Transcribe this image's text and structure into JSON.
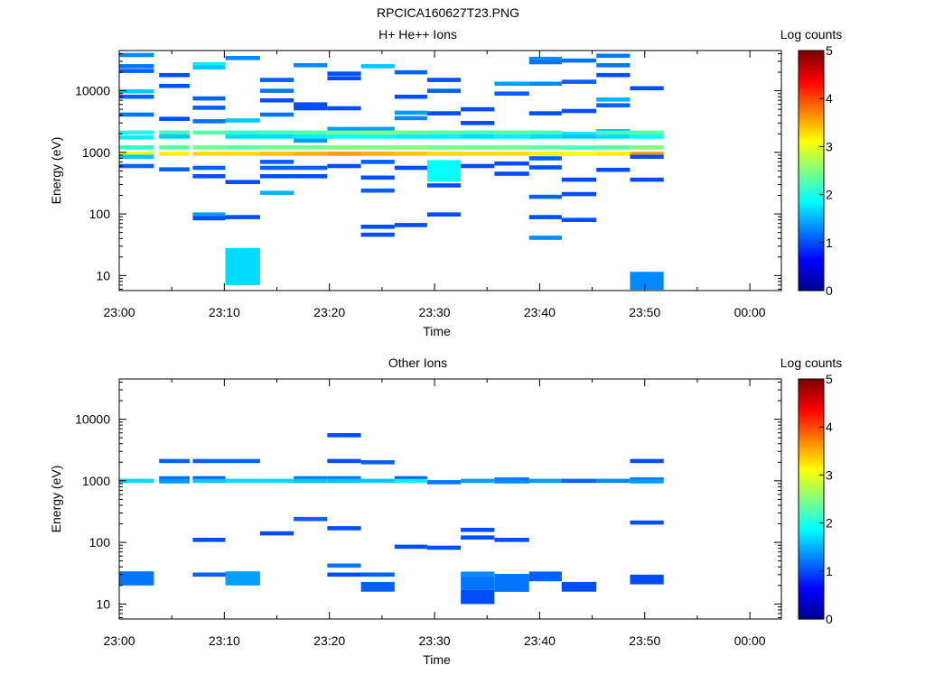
{
  "figure": {
    "title": "RPCICA160627T23.PNG"
  },
  "colors": {
    "colormap": [
      "#00008f",
      "#0000ff",
      "#0080ff",
      "#00ffff",
      "#80ff80",
      "#ffff00",
      "#ff8000",
      "#ff0000",
      "#800000"
    ],
    "axis": "#000000",
    "background": "#ffffff"
  },
  "chart_data": [
    {
      "type": "heatmap",
      "title": "H+ He++ Ions",
      "xlabel": "Time",
      "ylabel": "Energy (eV)",
      "x_ticks": [
        "23:00",
        "23:10",
        "23:20",
        "23:30",
        "23:40",
        "23:50",
        "00:00"
      ],
      "xlim_minutes": [
        0,
        63
      ],
      "y_scale": "log",
      "ylim": [
        5.7,
        45000
      ],
      "y_ticks": [
        "10",
        "100",
        "1000",
        "10000"
      ],
      "colorbar": {
        "label": "Log counts",
        "range": [
          0,
          5
        ],
        "ticks": [
          "0",
          "1",
          "2",
          "3",
          "4",
          "5"
        ]
      },
      "cells": [
        [
          0,
          3.3,
          38000,
          1.3
        ],
        [
          0,
          3.3,
          25000,
          1.2
        ],
        [
          0,
          3.3,
          21000,
          1.1
        ],
        [
          0,
          3.3,
          9800,
          1.6
        ],
        [
          0,
          3.3,
          8000,
          1.1
        ],
        [
          0,
          3.3,
          4100,
          1.2
        ],
        [
          0,
          3.3,
          2100,
          2.0
        ],
        [
          0,
          3.3,
          1750,
          1.8
        ],
        [
          0,
          3.3,
          1200,
          2.1
        ],
        [
          0,
          3.3,
          950,
          3.0
        ],
        [
          0,
          3.3,
          850,
          1.6
        ],
        [
          0,
          3.3,
          600,
          1.1
        ],
        [
          3.8,
          6.7,
          18000,
          1.0
        ],
        [
          3.8,
          6.7,
          12000,
          1.0
        ],
        [
          3.8,
          6.7,
          3500,
          1.0
        ],
        [
          3.8,
          6.7,
          2100,
          2.2
        ],
        [
          3.8,
          6.7,
          1800,
          1.6
        ],
        [
          3.8,
          6.7,
          1200,
          2.3
        ],
        [
          3.8,
          6.7,
          950,
          3.2
        ],
        [
          3.8,
          6.7,
          530,
          1.1
        ],
        [
          7,
          10.1,
          27000,
          1.8
        ],
        [
          7,
          10.1,
          24000,
          1.6
        ],
        [
          7,
          10.1,
          7500,
          1.1
        ],
        [
          7,
          10.1,
          5300,
          1.1
        ],
        [
          7,
          10.1,
          3200,
          1.2
        ],
        [
          7,
          10.1,
          2100,
          2.3
        ],
        [
          7,
          10.1,
          1200,
          2.4
        ],
        [
          7,
          10.1,
          950,
          3.3
        ],
        [
          7,
          10.1,
          560,
          1.1
        ],
        [
          7,
          10.1,
          410,
          1.0
        ],
        [
          7,
          10.1,
          98,
          1.4
        ],
        [
          7,
          10.1,
          85,
          1.0
        ],
        [
          10.1,
          13.4,
          34000,
          1.3
        ],
        [
          10.1,
          13.4,
          3300,
          1.6
        ],
        [
          10.1,
          13.4,
          2100,
          2.1
        ],
        [
          10.1,
          13.4,
          1800,
          1.7
        ],
        [
          10.1,
          13.4,
          1200,
          2.3
        ],
        [
          10.1,
          13.4,
          950,
          3.3
        ],
        [
          10.1,
          13.4,
          330,
          1.0
        ],
        [
          10.1,
          13.4,
          89,
          1.0
        ],
        [
          10.1,
          13.4,
          14,
          2,
          1.7
        ],
        [
          13.4,
          16.6,
          15000,
          1.1
        ],
        [
          13.4,
          16.6,
          10000,
          1.2
        ],
        [
          13.4,
          16.6,
          7000,
          1.0
        ],
        [
          13.4,
          16.6,
          4100,
          1.2
        ],
        [
          13.4,
          16.6,
          2100,
          2.2
        ],
        [
          13.4,
          16.6,
          1800,
          1.7
        ],
        [
          13.4,
          16.6,
          1200,
          2.4
        ],
        [
          13.4,
          16.6,
          950,
          3.4
        ],
        [
          13.4,
          16.6,
          700,
          1.1
        ],
        [
          13.4,
          16.6,
          560,
          1.1
        ],
        [
          13.4,
          16.6,
          410,
          1.0
        ],
        [
          13.4,
          16.6,
          220,
          1.5
        ],
        [
          16.6,
          19.8,
          26000,
          1.3
        ],
        [
          16.6,
          19.8,
          6000,
          1.0
        ],
        [
          16.6,
          19.8,
          5200,
          1.0
        ],
        [
          16.6,
          19.8,
          2100,
          2.3
        ],
        [
          16.6,
          19.8,
          1800,
          1.8
        ],
        [
          16.6,
          19.8,
          1550,
          1.4
        ],
        [
          16.6,
          19.8,
          1200,
          2.4
        ],
        [
          16.6,
          19.8,
          950,
          3.5
        ],
        [
          16.6,
          19.8,
          560,
          1.1
        ],
        [
          16.6,
          19.8,
          410,
          1.0
        ],
        [
          19.8,
          23,
          19000,
          1.0
        ],
        [
          19.8,
          23,
          16000,
          1.0
        ],
        [
          19.8,
          23,
          5200,
          1.0
        ],
        [
          19.8,
          23,
          2400,
          1.4
        ],
        [
          19.8,
          23,
          2100,
          2.4
        ],
        [
          19.8,
          23,
          1800,
          1.9
        ],
        [
          19.8,
          23,
          1200,
          2.5
        ],
        [
          19.8,
          23,
          950,
          3.6
        ],
        [
          19.8,
          23,
          600,
          1.0
        ],
        [
          23,
          26.2,
          25000,
          1.6
        ],
        [
          23,
          26.2,
          2400,
          1.4
        ],
        [
          23,
          26.2,
          2100,
          2.5
        ],
        [
          23,
          26.2,
          1800,
          1.9
        ],
        [
          23,
          26.2,
          1200,
          2.5
        ],
        [
          23,
          26.2,
          950,
          3.5
        ],
        [
          23,
          26.2,
          700,
          1.1
        ],
        [
          23,
          26.2,
          390,
          1.0
        ],
        [
          23,
          26.2,
          240,
          1.1
        ],
        [
          23,
          26.2,
          62,
          1.0
        ],
        [
          23,
          26.2,
          46,
          1.0
        ],
        [
          26.2,
          29.3,
          20000,
          1.1
        ],
        [
          26.2,
          29.3,
          8000,
          1.0
        ],
        [
          26.2,
          29.3,
          4400,
          1.4
        ],
        [
          26.2,
          29.3,
          3600,
          1.3
        ],
        [
          26.2,
          29.3,
          2100,
          2.4
        ],
        [
          26.2,
          29.3,
          1800,
          1.8
        ],
        [
          26.2,
          29.3,
          1200,
          2.5
        ],
        [
          26.2,
          29.3,
          950,
          3.4
        ],
        [
          26.2,
          29.3,
          560,
          1.0
        ],
        [
          26.2,
          29.3,
          66,
          1.0
        ],
        [
          29.3,
          32.5,
          15000,
          1.0
        ],
        [
          29.3,
          32.5,
          10000,
          1.1
        ],
        [
          29.3,
          32.5,
          4300,
          1.0
        ],
        [
          29.3,
          32.5,
          2100,
          2.3
        ],
        [
          29.3,
          32.5,
          1800,
          1.8
        ],
        [
          29.3,
          32.5,
          1200,
          2.4
        ],
        [
          29.3,
          32.5,
          950,
          3.3
        ],
        [
          29.3,
          32.5,
          500,
          1.5,
          1.9
        ],
        [
          29.3,
          32.5,
          290,
          1.0
        ],
        [
          29.3,
          32.5,
          98,
          1.0
        ],
        [
          32.5,
          35.7,
          5000,
          1.0
        ],
        [
          32.5,
          35.7,
          3000,
          1.0
        ],
        [
          32.5,
          35.7,
          2100,
          2.2
        ],
        [
          32.5,
          35.7,
          1800,
          1.7
        ],
        [
          32.5,
          35.7,
          1200,
          2.4
        ],
        [
          32.5,
          35.7,
          950,
          3.3
        ],
        [
          32.5,
          35.7,
          600,
          1.0
        ],
        [
          35.7,
          39,
          13000,
          1.4
        ],
        [
          35.7,
          39,
          9000,
          1.1
        ],
        [
          35.7,
          39,
          2100,
          2.3
        ],
        [
          35.7,
          39,
          1800,
          1.8
        ],
        [
          35.7,
          39,
          1200,
          2.4
        ],
        [
          35.7,
          39,
          950,
          3.3
        ],
        [
          35.7,
          39,
          660,
          1.0
        ],
        [
          35.7,
          39,
          450,
          1.0
        ],
        [
          39,
          42.1,
          33000,
          1.3
        ],
        [
          39,
          42.1,
          29000,
          1.2
        ],
        [
          39,
          42.1,
          13000,
          1.3
        ],
        [
          39,
          42.1,
          4300,
          1.0
        ],
        [
          39,
          42.1,
          2100,
          2.2
        ],
        [
          39,
          42.1,
          1800,
          1.7
        ],
        [
          39,
          42.1,
          1200,
          2.3
        ],
        [
          39,
          42.1,
          950,
          3.2
        ],
        [
          39,
          42.1,
          800,
          1.1
        ],
        [
          39,
          42.1,
          570,
          1.0
        ],
        [
          39,
          42.1,
          190,
          1.1
        ],
        [
          39,
          42.1,
          89,
          1.0
        ],
        [
          39,
          42.1,
          41,
          1.3
        ],
        [
          42.1,
          45.4,
          31000,
          1.2
        ],
        [
          42.1,
          45.4,
          14000,
          1.1
        ],
        [
          42.1,
          45.4,
          4700,
          1.0
        ],
        [
          42.1,
          45.4,
          2000,
          1.8
        ],
        [
          42.1,
          45.4,
          1800,
          1.6
        ],
        [
          42.1,
          45.4,
          1200,
          2.2
        ],
        [
          42.1,
          45.4,
          950,
          3.1
        ],
        [
          42.1,
          45.4,
          360,
          1.0
        ],
        [
          42.1,
          45.4,
          210,
          1.0
        ],
        [
          42.1,
          45.4,
          80,
          1.0
        ],
        [
          45.4,
          48.6,
          37000,
          1.2
        ],
        [
          45.4,
          48.6,
          26000,
          1.2
        ],
        [
          45.4,
          48.6,
          18000,
          1.0
        ],
        [
          45.4,
          48.6,
          7200,
          1.5
        ],
        [
          45.4,
          48.6,
          5800,
          1.1
        ],
        [
          45.4,
          48.6,
          2200,
          1.4
        ],
        [
          45.4,
          48.6,
          2100,
          2.2
        ],
        [
          45.4,
          48.6,
          1800,
          1.7
        ],
        [
          45.4,
          48.6,
          1200,
          2.3
        ],
        [
          45.4,
          48.6,
          950,
          3.2
        ],
        [
          45.4,
          48.6,
          520,
          1.0
        ],
        [
          48.6,
          51.8,
          11000,
          1.0
        ],
        [
          48.6,
          51.8,
          2100,
          2.3
        ],
        [
          48.6,
          51.8,
          1800,
          1.9
        ],
        [
          48.6,
          51.8,
          1200,
          2.5
        ],
        [
          48.6,
          51.8,
          950,
          3.6
        ],
        [
          48.6,
          51.8,
          850,
          1.0
        ],
        [
          48.6,
          51.8,
          360,
          1.0
        ],
        [
          48.6,
          51.8,
          8.2,
          1.4,
          1.3
        ]
      ]
    },
    {
      "type": "heatmap",
      "title": "Other Ions",
      "xlabel": "Time",
      "ylabel": "Energy (eV)",
      "x_ticks": [
        "23:00",
        "23:10",
        "23:20",
        "23:30",
        "23:40",
        "23:50",
        "00:00"
      ],
      "xlim_minutes": [
        0,
        63
      ],
      "y_scale": "log",
      "ylim": [
        5.7,
        45000
      ],
      "y_ticks": [
        "10",
        "100",
        "1000",
        "10000"
      ],
      "colorbar": {
        "label": "Log counts",
        "range": [
          0,
          5
        ],
        "ticks": [
          "0",
          "1",
          "2",
          "3",
          "4",
          "5"
        ]
      },
      "cells": [
        [
          0,
          3.3,
          1000,
          1.7
        ],
        [
          0,
          3.3,
          26,
          1.3,
          1.2
        ],
        [
          3.8,
          6.7,
          2100,
          1.1
        ],
        [
          3.8,
          6.7,
          1100,
          1.2
        ],
        [
          3.8,
          6.7,
          980,
          1.4
        ],
        [
          7,
          10.1,
          2100,
          1.1
        ],
        [
          7,
          10.1,
          1100,
          1.1
        ],
        [
          7,
          10.1,
          1000,
          1.6
        ],
        [
          7,
          10.1,
          110,
          1.0
        ],
        [
          7,
          10.1,
          30,
          1.1
        ],
        [
          10.1,
          13.4,
          2100,
          1.1
        ],
        [
          10.1,
          13.4,
          1000,
          1.7
        ],
        [
          10.1,
          13.4,
          26,
          1.3,
          1.4
        ],
        [
          13.4,
          16.6,
          1000,
          1.7
        ],
        [
          13.4,
          16.6,
          140,
          1.0
        ],
        [
          16.6,
          19.8,
          1100,
          1.2
        ],
        [
          16.6,
          19.8,
          1000,
          1.6
        ],
        [
          16.6,
          19.8,
          240,
          1.1
        ],
        [
          19.8,
          23,
          5500,
          1.0
        ],
        [
          19.8,
          23,
          2100,
          1.0
        ],
        [
          19.8,
          23,
          1100,
          1.2
        ],
        [
          19.8,
          23,
          1000,
          1.6
        ],
        [
          19.8,
          23,
          170,
          1.0
        ],
        [
          19.8,
          23,
          42,
          1.2
        ],
        [
          19.8,
          23,
          30,
          1.0
        ],
        [
          23,
          26.2,
          2000,
          1.1
        ],
        [
          23,
          26.2,
          1000,
          1.6
        ],
        [
          23,
          26.2,
          30,
          1.1
        ],
        [
          23,
          26.2,
          19,
          1.2,
          1.1
        ],
        [
          26.2,
          29.3,
          1100,
          1.1
        ],
        [
          26.2,
          29.3,
          1000,
          1.8
        ],
        [
          26.2,
          29.3,
          85,
          1.0
        ],
        [
          29.3,
          32.5,
          950,
          1.2
        ],
        [
          29.3,
          32.5,
          82,
          1.0
        ],
        [
          32.5,
          35.7,
          1000,
          1.4
        ],
        [
          32.5,
          35.7,
          160,
          1.0
        ],
        [
          32.5,
          35.7,
          120,
          1.0
        ],
        [
          32.5,
          35.7,
          31,
          1.3
        ],
        [
          32.5,
          35.7,
          22,
          1.3,
          1.2
        ],
        [
          32.5,
          35.7,
          13,
          1.3,
          1.0
        ],
        [
          35.7,
          39,
          1050,
          1.2
        ],
        [
          35.7,
          39,
          980,
          1.3
        ],
        [
          35.7,
          39,
          110,
          1.0
        ],
        [
          35.7,
          39,
          22,
          1.4,
          1.2
        ],
        [
          39,
          42.1,
          1000,
          1.4
        ],
        [
          39,
          42.1,
          28,
          1.2,
          1.1
        ],
        [
          42.1,
          45.4,
          1000,
          1.1
        ],
        [
          42.1,
          45.4,
          19,
          1.2,
          1.0
        ],
        [
          45.4,
          48.6,
          1000,
          1.3
        ],
        [
          48.6,
          51.8,
          2100,
          1.0
        ],
        [
          48.6,
          51.8,
          1050,
          1.2
        ],
        [
          48.6,
          51.8,
          980,
          1.4
        ],
        [
          48.6,
          51.8,
          210,
          1.0
        ],
        [
          48.6,
          51.8,
          25,
          1.2,
          1.0
        ]
      ]
    }
  ]
}
